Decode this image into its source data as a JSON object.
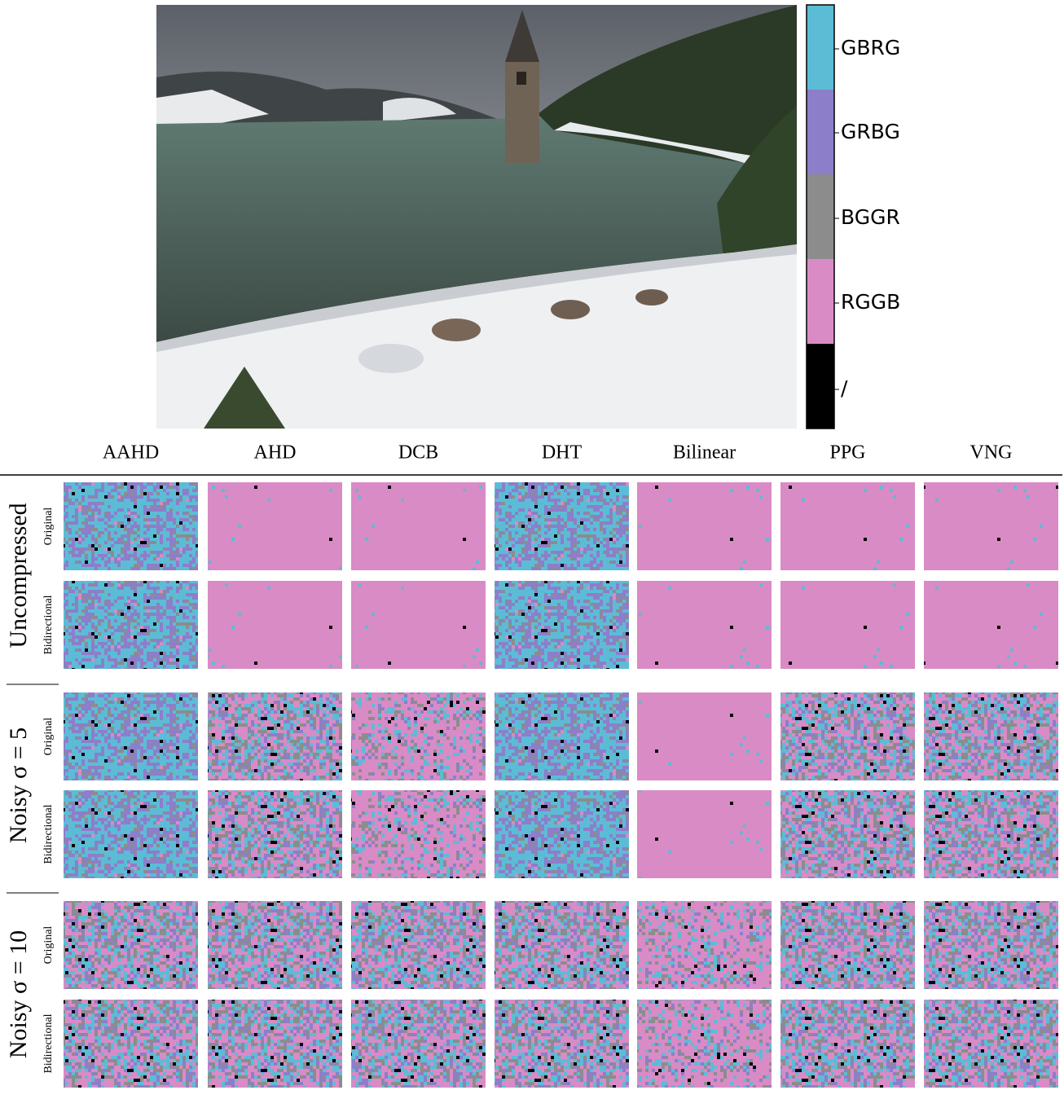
{
  "colorbar": {
    "labels": [
      "GBRG",
      "GRBG",
      "BGGR",
      "RGGB",
      "/"
    ]
  },
  "columns": [
    "AAHD",
    "AHD",
    "DCB",
    "DHT",
    "Bilinear",
    "PPG",
    "VNG"
  ],
  "row_groups": [
    {
      "label": "Uncompressed",
      "rows": [
        "Original",
        "Bidirectional"
      ]
    },
    {
      "label": "Noisy σ = 5",
      "rows": [
        "Original",
        "Bidirectional"
      ]
    },
    {
      "label": "Noisy σ = 10",
      "rows": [
        "Original",
        "Bidirectional"
      ]
    }
  ]
}
